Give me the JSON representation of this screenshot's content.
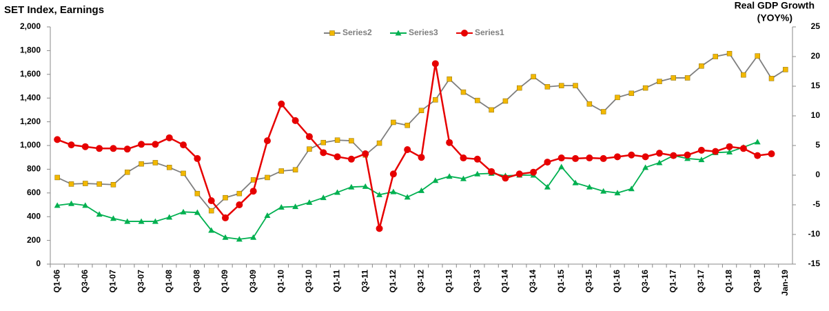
{
  "chart_data": {
    "type": "line",
    "title": "SET Index, Earnings",
    "y2_label": [
      "Real GDP Growth",
      "(YOY%)"
    ],
    "categories": [
      "Q1-06",
      null,
      "Q3-06",
      null,
      "Q1-07",
      null,
      "Q3-07",
      null,
      "Q1-08",
      null,
      "Q3-08",
      null,
      "Q1-09",
      null,
      "Q3-09",
      null,
      "Q1-10",
      null,
      "Q3-10",
      null,
      "Q1-11",
      null,
      "Q3-11",
      null,
      "Q1-12",
      null,
      "Q3-12",
      null,
      "Q1-13",
      null,
      "Q3-13",
      null,
      "Q1-14",
      null,
      "Q3-14",
      null,
      "Q1-15",
      null,
      "Q3-15",
      null,
      "Q1-16",
      null,
      "Q3-16",
      null,
      "Q1-17",
      null,
      "Q3-17",
      null,
      "Q1-18",
      null,
      "Q3-18",
      null,
      "Jan-19"
    ],
    "series": [
      {
        "name": "Series2",
        "color": "#7f7f7f",
        "marker": "square",
        "marker_color": "#f2b800",
        "axis": "y",
        "values": [
          730,
          675,
          680,
          675,
          670,
          775,
          845,
          855,
          815,
          765,
          595,
          450,
          560,
          595,
          710,
          730,
          785,
          795,
          970,
          1025,
          1045,
          1040,
          920,
          1020,
          1195,
          1170,
          1295,
          1385,
          1560,
          1450,
          1380,
          1300,
          1375,
          1485,
          1580,
          1495,
          1505,
          1505,
          1350,
          1285,
          1405,
          1440,
          1485,
          1540,
          1570,
          1570,
          1670,
          1750,
          1775,
          1595,
          1755,
          1565,
          1640
        ]
      },
      {
        "name": "Series3",
        "color": "#00b050",
        "marker": "triangle",
        "marker_color": "#00b050",
        "axis": "y",
        "values": [
          495,
          510,
          495,
          420,
          385,
          360,
          360,
          360,
          395,
          440,
          435,
          285,
          225,
          210,
          225,
          410,
          480,
          485,
          520,
          560,
          605,
          650,
          655,
          585,
          610,
          565,
          620,
          705,
          740,
          720,
          760,
          765,
          745,
          750,
          750,
          650,
          820,
          685,
          650,
          615,
          600,
          635,
          815,
          855,
          915,
          890,
          880,
          940,
          945,
          985,
          1030,
          null,
          null
        ]
      },
      {
        "name": "Series1",
        "color": "#e60000",
        "marker": "circle",
        "marker_color": "#e60000",
        "axis": "y2",
        "values": [
          6.0,
          5.1,
          4.8,
          4.5,
          4.5,
          4.4,
          5.2,
          5.2,
          6.3,
          5.1,
          2.8,
          -4.3,
          -7.2,
          -5.0,
          -2.7,
          5.8,
          12.0,
          9.2,
          6.5,
          3.8,
          3.1,
          2.7,
          3.6,
          -9.0,
          0.2,
          4.3,
          3.0,
          18.8,
          5.5,
          2.9,
          2.7,
          0.6,
          -0.5,
          0.2,
          0.5,
          2.2,
          2.9,
          2.8,
          2.9,
          2.8,
          3.1,
          3.4,
          3.1,
          3.7,
          3.3,
          3.4,
          4.2,
          4.0,
          4.8,
          4.5,
          3.3,
          3.6,
          null
        ]
      }
    ],
    "ylim": [
      0,
      2000
    ],
    "yticks": [
      0,
      200,
      400,
      600,
      800,
      {
        "value": 1000,
        "label": "1,000"
      },
      {
        "value": 1200,
        "label": "1,200"
      },
      {
        "value": 1400,
        "label": "1,400"
      },
      {
        "value": 1600,
        "label": "1,600"
      },
      {
        "value": 1800,
        "label": "1,800"
      },
      {
        "value": 2000,
        "label": "2,000"
      }
    ],
    "y2lim": [
      -15,
      25
    ],
    "y2ticks": [
      -15,
      -10,
      -5,
      0,
      5,
      10,
      15,
      20,
      25
    ],
    "grid": false,
    "legend": "top"
  }
}
